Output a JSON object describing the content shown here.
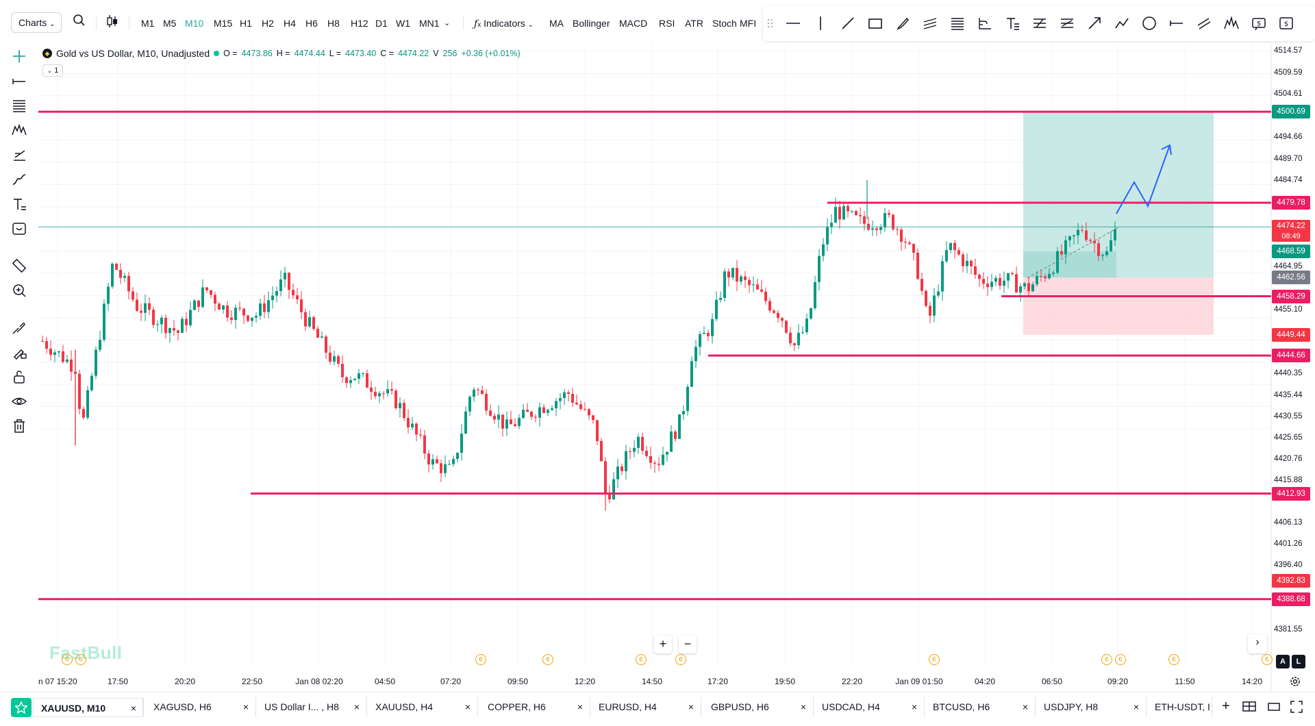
{
  "toolbar": {
    "charts_label": "Charts",
    "timeframes": [
      "M1",
      "M5",
      "M10",
      "M15",
      "H1",
      "H2",
      "H4",
      "H6",
      "H8",
      "H12",
      "D1",
      "W1",
      "MN1"
    ],
    "active_timeframe": "M10",
    "indicators_label": "Indicators",
    "quick_indicators": [
      "MA",
      "Bollinger",
      "MACD",
      "RSI",
      "ATR",
      "Stoch",
      "MFI"
    ]
  },
  "legend": {
    "symbol_title": "Gold vs US Dollar, M10, Unadjusted",
    "open_label": "O =",
    "open": "4473.86",
    "high_label": "H =",
    "high": "4474.44",
    "low_label": "L =",
    "low": "4473.40",
    "close_label": "C =",
    "close": "4474.22",
    "volume_label": "V",
    "volume": "256",
    "change": "+0.36 (+0.01%)",
    "collapse_label": "1"
  },
  "watermark": "FastBull",
  "price_axis": {
    "ticks": [
      "4514.57",
      "4509.59",
      "4504.61",
      "4494.66",
      "4489.70",
      "4484.74",
      "4464.95",
      "4455.10",
      "4440.35",
      "4435.44",
      "4430.55",
      "4425.65",
      "4420.76",
      "4415.88",
      "4406.13",
      "4401.26",
      "4396.40",
      "4381.55"
    ],
    "labels": [
      {
        "value": "4500.69",
        "color": "#089981"
      },
      {
        "value": "4479.78",
        "color": "#e91e63"
      },
      {
        "value": "4474.22",
        "sub": "08:49",
        "color": "#f23645"
      },
      {
        "value": "4468.59",
        "color": "#089981"
      },
      {
        "value": "4462.56",
        "color": "#787b86"
      },
      {
        "value": "4458.29",
        "color": "#e91e63"
      },
      {
        "value": "4449.44",
        "color": "#f23645"
      },
      {
        "value": "4444.66",
        "color": "#e91e63"
      },
      {
        "value": "4412.93",
        "color": "#e91e63"
      },
      {
        "value": "4392.83",
        "color": "#f23645"
      },
      {
        "value": "4388.68",
        "color": "#e91e63"
      }
    ]
  },
  "time_axis": {
    "ticks": [
      "n 07 15:20",
      "17:50",
      "20:20",
      "22:50",
      "Jan 08 02:20",
      "04:50",
      "07:20",
      "09:50",
      "12:20",
      "14:50",
      "17:20",
      "19:50",
      "22:20",
      "Jan 09 01:50",
      "04:20",
      "06:50",
      "09:20",
      "11:50",
      "14:20"
    ]
  },
  "axis_mode": {
    "auto": "A",
    "log": "L"
  },
  "colors": {
    "up": "#089981",
    "down": "#f23645",
    "level_line": "#e91e63",
    "current_price_line": "#26a69a",
    "tp_zone": "#b2dfdb",
    "sl_zone": "#fcd2d7",
    "arrow": "#2962ff"
  },
  "tabs": [
    {
      "label": "XAUUSD, M10",
      "active": true
    },
    {
      "label": "XAGUSD, H6"
    },
    {
      "label": "US Dollar I... , H8"
    },
    {
      "label": "XAUUSD, H4"
    },
    {
      "label": "COPPER, H6"
    },
    {
      "label": "EURUSD, H4"
    },
    {
      "label": "GBPUSD, H6"
    },
    {
      "label": "USDCAD, H4"
    },
    {
      "label": "BTCUSD, H6"
    },
    {
      "label": "USDJPY, H8"
    },
    {
      "label": "ETH-USDT, I"
    }
  ]
}
